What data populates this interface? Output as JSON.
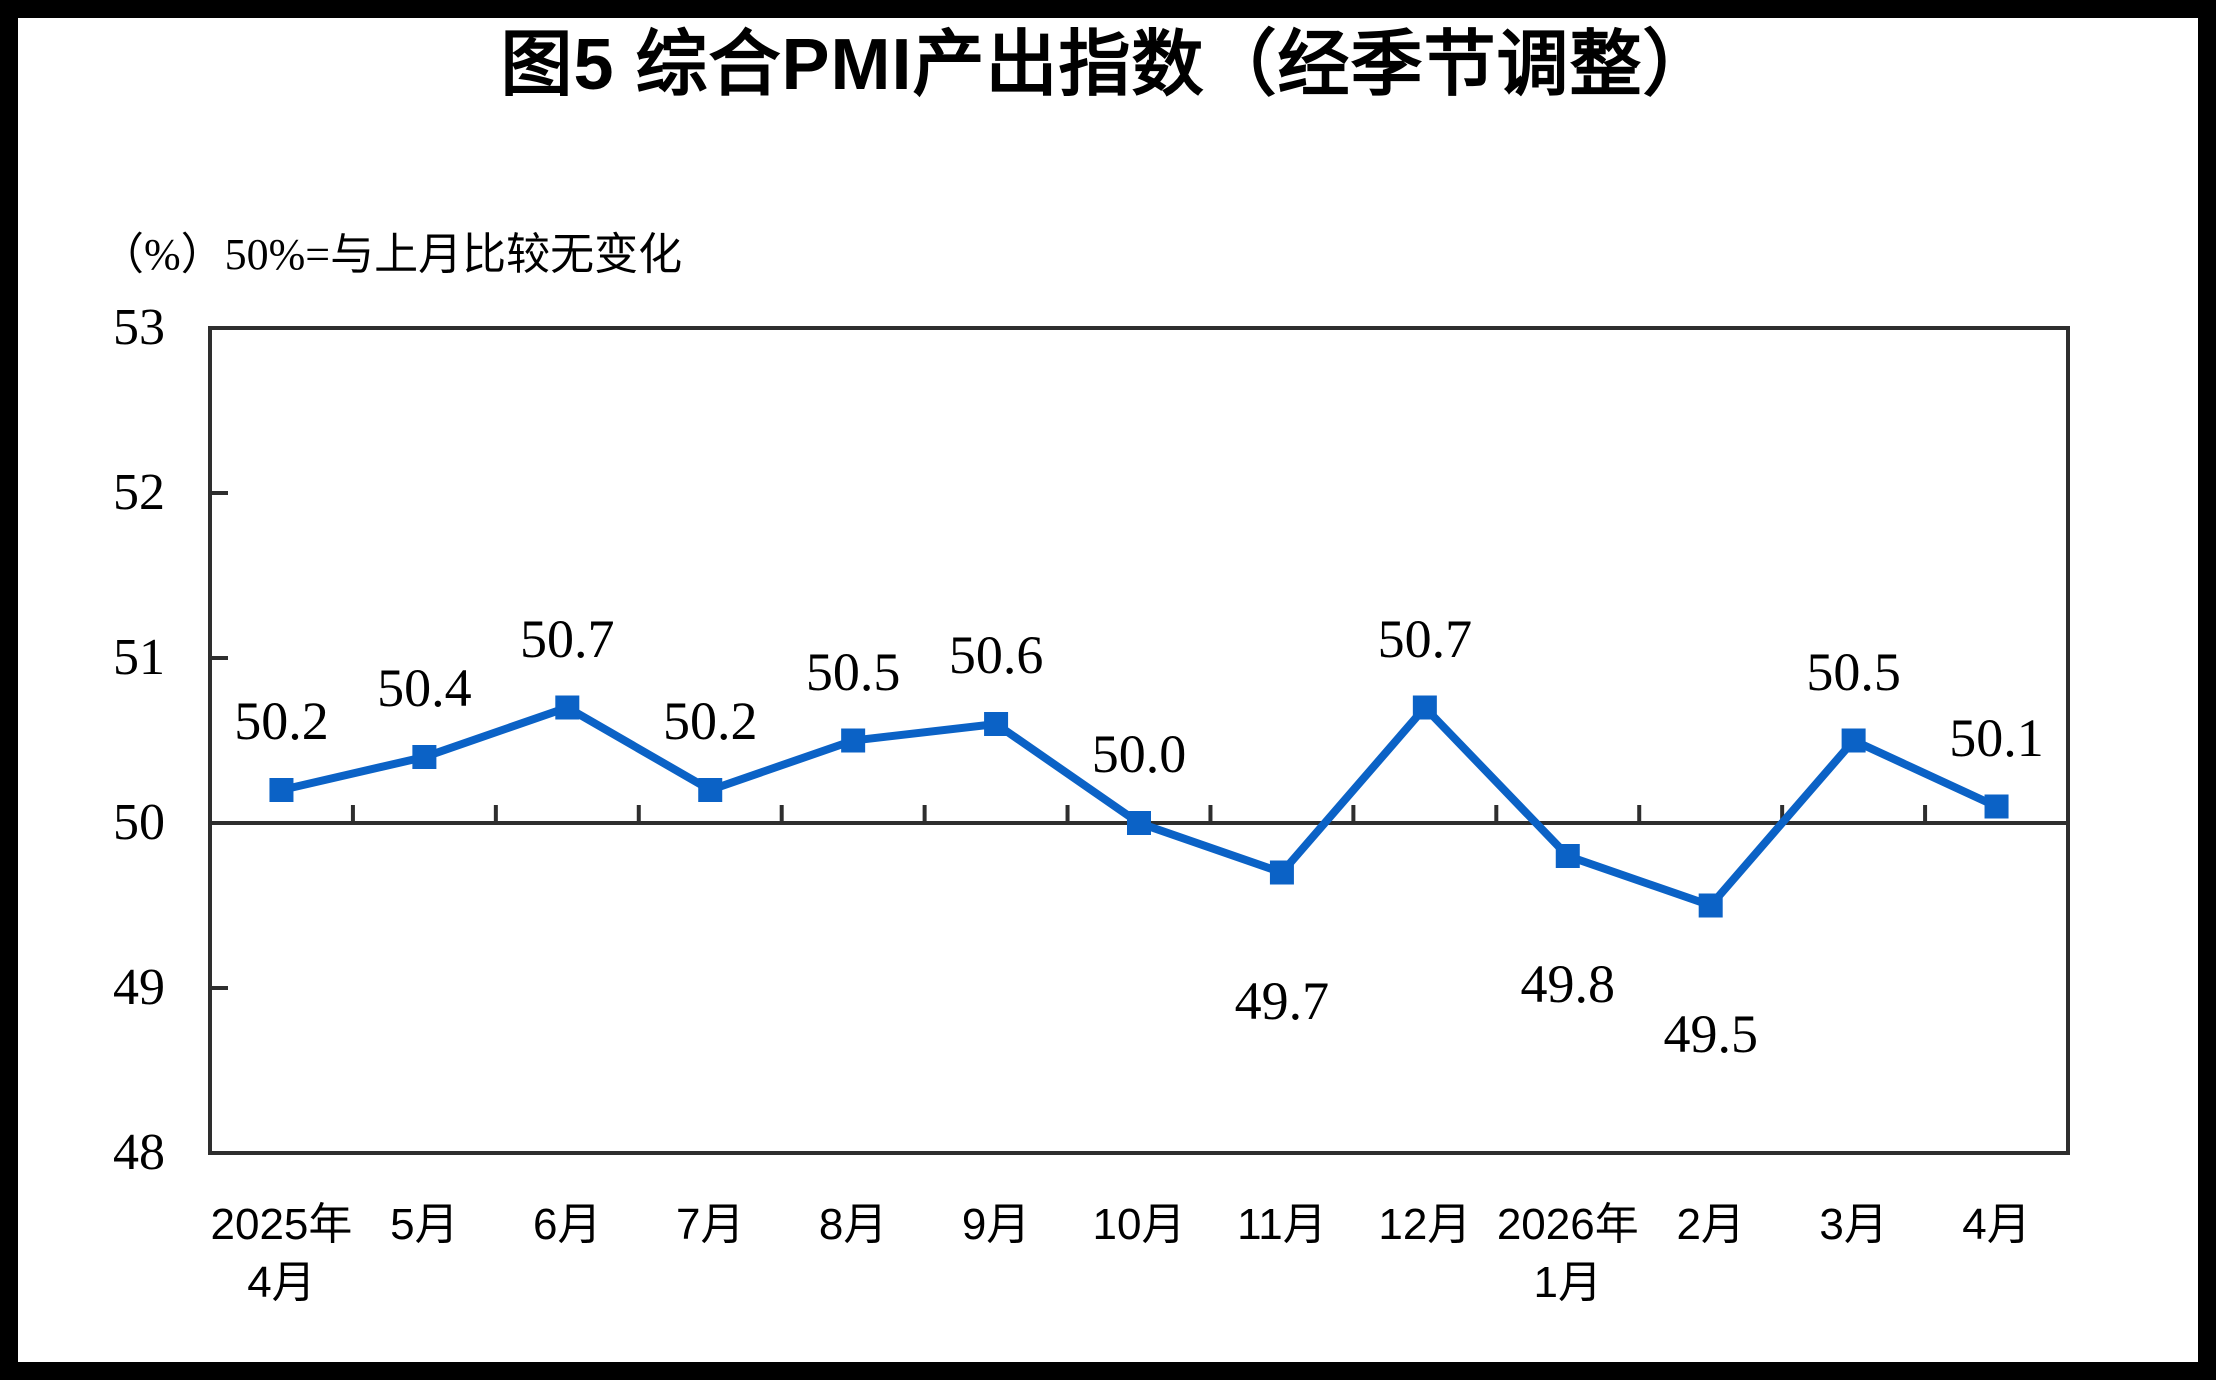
{
  "page": {
    "title": "图5 综合PMI产出指数（经季节调整）",
    "unit_note": "（%）50%=与上月比较无变化"
  },
  "chart_data": {
    "type": "line",
    "title": "图5 综合PMI产出指数（经季节调整）",
    "unit_note": "（%）50%=与上月比较无变化",
    "categories": [
      "2025年4月",
      "5月",
      "6月",
      "7月",
      "8月",
      "9月",
      "10月",
      "11月",
      "12月",
      "2026年1月",
      "2月",
      "3月",
      "4月"
    ],
    "category_label_lines": [
      [
        "2025年",
        "4月"
      ],
      [
        "5月"
      ],
      [
        "6月"
      ],
      [
        "7月"
      ],
      [
        "8月"
      ],
      [
        "9月"
      ],
      [
        "10月"
      ],
      [
        "11月"
      ],
      [
        "12月"
      ],
      [
        "2026年",
        "1月"
      ],
      [
        "2月"
      ],
      [
        "3月"
      ],
      [
        "4月"
      ]
    ],
    "series": [
      {
        "name": "综合PMI产出指数",
        "values": [
          50.2,
          50.4,
          50.7,
          50.2,
          50.5,
          50.6,
          50.0,
          49.7,
          50.7,
          49.8,
          49.5,
          50.5,
          50.1
        ]
      }
    ],
    "data_labels": [
      "50.2",
      "50.4",
      "50.7",
      "50.2",
      "50.5",
      "50.6",
      "50.0",
      "49.7",
      "50.7",
      "49.8",
      "49.5",
      "50.5",
      "50.1"
    ],
    "data_label_positions": [
      "above",
      "above",
      "above",
      "above",
      "above",
      "above",
      "above",
      "below",
      "above",
      "below",
      "below",
      "above",
      "above"
    ],
    "xlabel": "",
    "ylabel": "",
    "ylim": [
      48,
      53
    ],
    "yticks": [
      48,
      49,
      50,
      51,
      52,
      53
    ],
    "reference_line": 50,
    "grid": false,
    "legend_position": "none",
    "marker": "square",
    "colors": {
      "line": "#0B62C6",
      "axis": "#2E2E2E",
      "text": "#000000",
      "background": "#FFFFFF",
      "frame": "#000000"
    }
  }
}
